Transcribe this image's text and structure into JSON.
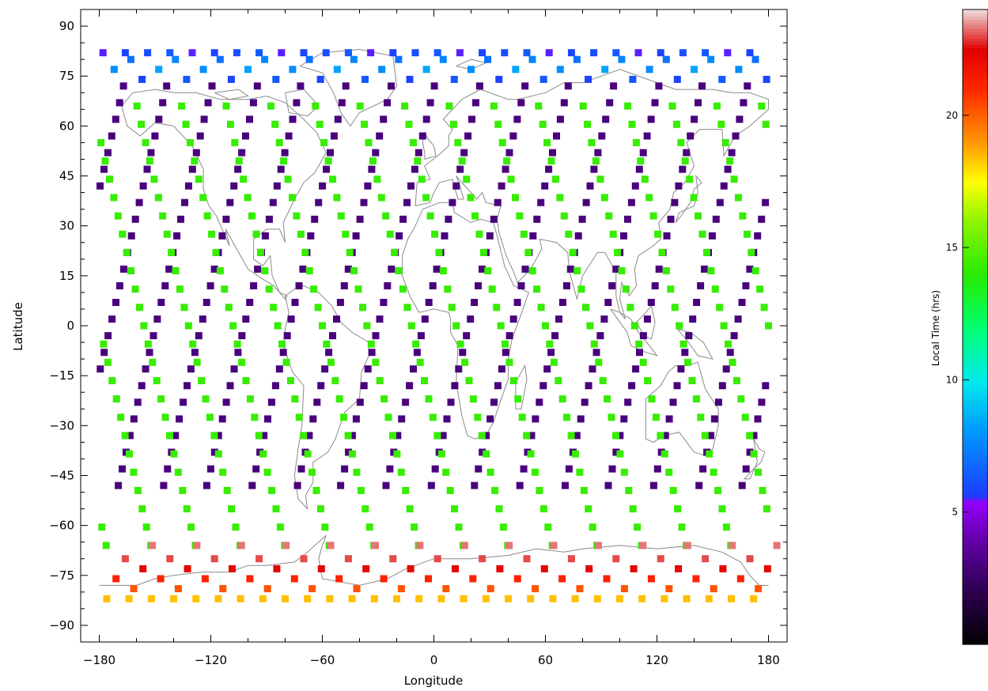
{
  "chart_data": {
    "type": "scatter",
    "xlabel": "Longitude",
    "ylabel": "Latitude",
    "xlim": [
      -190,
      190
    ],
    "ylim": [
      -95,
      95
    ],
    "xticks": [
      "-180",
      "-120",
      "-60",
      "0",
      "60",
      "120",
      "180"
    ],
    "yticks": [
      "90",
      "75",
      "60",
      "45",
      "30",
      "15",
      "0",
      "-15",
      "-30",
      "-45",
      "-60",
      "-75",
      "-90"
    ],
    "grid": false,
    "background": "coastline map (world continents outline)",
    "marker": "square",
    "color_variable": "local time",
    "tracks": {
      "count": 15,
      "longitude_spacing_deg": 24,
      "ascending_crossing_longitudes": [
        -174,
        -150,
        -126,
        -102,
        -78,
        -54,
        -30,
        -6,
        18,
        42,
        66,
        90,
        114,
        138,
        162
      ],
      "descending_crossing_longitudes": [
        -174,
        -150,
        -126,
        -102,
        -78,
        -54,
        -30,
        -6,
        18,
        42,
        66,
        90,
        114,
        138,
        162
      ],
      "ascending_local_time_hrs": 3.0,
      "descending_local_time_hrs": 14.3,
      "latitude_range": [
        -82,
        82
      ],
      "north_polar_local_time_range_hrs": [
        5.5,
        9.0
      ],
      "south_polar_local_time_range_hrs": [
        17.5,
        23.5
      ]
    },
    "colorbar": {
      "label": "Local Time (hrs)",
      "range": [
        0,
        24
      ],
      "ticks": [
        "5",
        "10",
        "15",
        "20"
      ],
      "colormap": "rainbow + white",
      "position": "right"
    }
  }
}
